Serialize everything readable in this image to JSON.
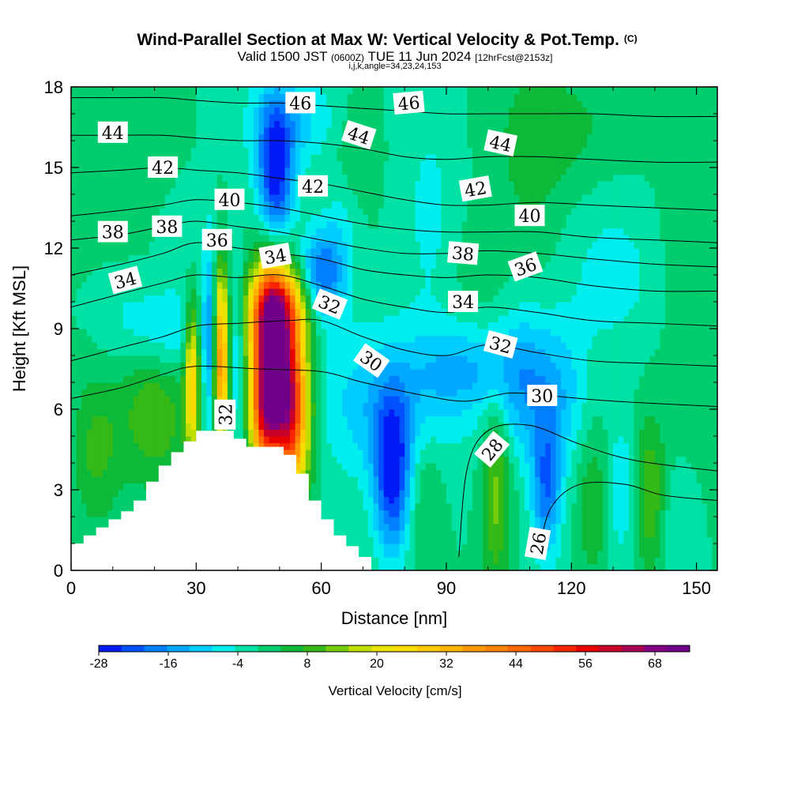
{
  "chart_data": {
    "type": "heatmap",
    "title": "Wind-Parallel Section at Max W: Vertical Velocity & Pot.Temp.",
    "title_mark": "(C)",
    "valid_prefix": "Valid 1500 JST",
    "valid_z": "(0600Z)",
    "valid_date": "TUE 11 Jun 2024",
    "valid_fcst": "[12hrFcst@2153z]",
    "indices": "i,j,k,angle=34,23,24,153",
    "xlabel": "Distance [nm]",
    "ylabel": "Height [Kft MSL]",
    "xlim": [
      0,
      155
    ],
    "ylim": [
      0,
      18
    ],
    "x_ticks": [
      "0",
      "30",
      "60",
      "90",
      "120",
      "150"
    ],
    "y_ticks": [
      "0",
      "3",
      "6",
      "9",
      "12",
      "15",
      "18"
    ],
    "colorbar": {
      "label": "Vertical Velocity [cm/s]",
      "min": -28,
      "max": 74,
      "step": 4,
      "tick_labels": [
        "-28",
        "-16",
        "-4",
        "8",
        "20",
        "32",
        "44",
        "56",
        "68"
      ]
    },
    "terrain_kft": [
      [
        0,
        1.0
      ],
      [
        3,
        1.0
      ],
      [
        3,
        1.3
      ],
      [
        6,
        1.3
      ],
      [
        6,
        1.6
      ],
      [
        9,
        1.6
      ],
      [
        9,
        1.9
      ],
      [
        12,
        1.9
      ],
      [
        12,
        2.2
      ],
      [
        15,
        2.2
      ],
      [
        15,
        2.6
      ],
      [
        18,
        2.6
      ],
      [
        18,
        3.3
      ],
      [
        21,
        3.3
      ],
      [
        21,
        3.9
      ],
      [
        24,
        3.9
      ],
      [
        24,
        4.4
      ],
      [
        27,
        4.4
      ],
      [
        27,
        4.8
      ],
      [
        30,
        4.8
      ],
      [
        30,
        5.2
      ],
      [
        39,
        5.2
      ],
      [
        39,
        4.9
      ],
      [
        42,
        4.9
      ],
      [
        42,
        4.6
      ],
      [
        51,
        4.6
      ],
      [
        51,
        4.3
      ],
      [
        54,
        4.3
      ],
      [
        54,
        3.6
      ],
      [
        57,
        3.6
      ],
      [
        57,
        2.6
      ],
      [
        60,
        2.6
      ],
      [
        60,
        1.9
      ],
      [
        63,
        1.9
      ],
      [
        63,
        1.3
      ],
      [
        66,
        1.3
      ],
      [
        66,
        0.9
      ],
      [
        69,
        0.9
      ],
      [
        69,
        0.5
      ],
      [
        72,
        0.5
      ],
      [
        72,
        0
      ]
    ],
    "velocity_field": {
      "background": 0,
      "features": [
        {
          "x": 48,
          "y": 7.8,
          "sx": 3.2,
          "sy": 2.4,
          "w": 76
        },
        {
          "x": 53,
          "y": 6.0,
          "sx": 3.0,
          "sy": 2.2,
          "w": 50
        },
        {
          "x": 50,
          "y": 9.8,
          "sx": 5.0,
          "sy": 1.0,
          "w": 28
        },
        {
          "x": 46,
          "y": 5.5,
          "sx": 2.0,
          "sy": 1.3,
          "w": 20
        },
        {
          "x": 36,
          "y": 7.8,
          "sx": 1.1,
          "sy": 2.4,
          "w": 40
        },
        {
          "x": 29,
          "y": 7.2,
          "sx": 1.2,
          "sy": 2.0,
          "w": 28
        },
        {
          "x": 33,
          "y": 8.5,
          "sx": 1.0,
          "sy": 2.5,
          "w": -14
        },
        {
          "x": 40,
          "y": 8.0,
          "sx": 1.0,
          "sy": 2.5,
          "w": -10
        },
        {
          "x": 20,
          "y": 6.0,
          "sx": 6.0,
          "sy": 2.0,
          "w": 12
        },
        {
          "x": 6,
          "y": 4.5,
          "sx": 4.0,
          "sy": 2.0,
          "w": 9
        },
        {
          "x": 23,
          "y": 8.8,
          "sx": 6.0,
          "sy": 1.2,
          "w": -10
        },
        {
          "x": 12,
          "y": 9.5,
          "sx": 5.0,
          "sy": 1.5,
          "w": -4
        },
        {
          "x": 49,
          "y": 14.6,
          "sx": 3.0,
          "sy": 1.9,
          "w": -28
        },
        {
          "x": 60,
          "y": 11.0,
          "sx": 3.5,
          "sy": 1.2,
          "w": -20
        },
        {
          "x": 53,
          "y": 16.8,
          "sx": 8.0,
          "sy": 1.2,
          "w": -10
        },
        {
          "x": 67,
          "y": 15.5,
          "sx": 4.0,
          "sy": 1.5,
          "w": 6
        },
        {
          "x": 77,
          "y": 3.5,
          "sx": 3.0,
          "sy": 2.0,
          "w": -26
        },
        {
          "x": 76,
          "y": 6.2,
          "sx": 12.0,
          "sy": 2.0,
          "w": -12
        },
        {
          "x": 95,
          "y": 7.5,
          "sx": 8.0,
          "sy": 1.2,
          "w": -10
        },
        {
          "x": 108,
          "y": 7.0,
          "sx": 5.0,
          "sy": 2.0,
          "w": -12
        },
        {
          "x": 114,
          "y": 3.0,
          "sx": 2.5,
          "sy": 1.8,
          "w": -18
        },
        {
          "x": 102,
          "y": 3.0,
          "sx": 2.5,
          "sy": 2.5,
          "w": 14
        },
        {
          "x": 85,
          "y": 3.0,
          "sx": 3.0,
          "sy": 2.0,
          "w": 6
        },
        {
          "x": 125,
          "y": 2.5,
          "sx": 2.5,
          "sy": 2.0,
          "w": 8
        },
        {
          "x": 139,
          "y": 2.8,
          "sx": 2.5,
          "sy": 2.0,
          "w": 12
        },
        {
          "x": 132,
          "y": 3.0,
          "sx": 2.0,
          "sy": 1.8,
          "w": -8
        },
        {
          "x": 145,
          "y": 1.5,
          "sx": 3.0,
          "sy": 1.5,
          "w": -4
        },
        {
          "x": 117,
          "y": 6.5,
          "sx": 5.0,
          "sy": 2.0,
          "w": -10
        },
        {
          "x": 130,
          "y": 11.0,
          "sx": 8.0,
          "sy": 2.0,
          "w": -6
        },
        {
          "x": 110,
          "y": 14.5,
          "sx": 6.0,
          "sy": 3.0,
          "w": 4
        },
        {
          "x": 150,
          "y": 12.0,
          "sx": 6.0,
          "sy": 4.0,
          "w": 4
        },
        {
          "x": 118,
          "y": 16.5,
          "sx": 10.0,
          "sy": 1.5,
          "w": 5
        },
        {
          "x": 86,
          "y": 13.5,
          "sx": 5.0,
          "sy": 3.0,
          "w": -5
        },
        {
          "x": 12,
          "y": 15.0,
          "sx": 8.0,
          "sy": 2.5,
          "w": 4
        },
        {
          "x": 97,
          "y": 11.0,
          "sx": 4.0,
          "sy": 1.5,
          "w": 3
        },
        {
          "x": 65,
          "y": 13.0,
          "sx": 3.0,
          "sy": 2.0,
          "w": -6
        },
        {
          "x": 28,
          "y": 12.5,
          "sx": 6.0,
          "sy": 1.5,
          "w": -3
        }
      ]
    },
    "theta_contours": [
      {
        "value": 26,
        "points": [
          [
            112,
            0.5
          ],
          [
            115,
            2.3
          ],
          [
            122,
            3.2
          ],
          [
            133,
            3.2
          ],
          [
            142,
            2.8
          ],
          [
            155,
            2.6
          ]
        ]
      },
      {
        "value": 28,
        "points": [
          [
            93,
            0.5
          ],
          [
            95,
            3.8
          ],
          [
            100,
            5.2
          ],
          [
            110,
            5.4
          ],
          [
            122,
            4.7
          ],
          [
            135,
            4.1
          ],
          [
            155,
            3.7
          ]
        ]
      },
      {
        "value": 30,
        "points": [
          [
            0,
            6.4
          ],
          [
            12,
            6.8
          ],
          [
            22,
            7.3
          ],
          [
            30,
            7.6
          ],
          [
            45,
            7.5
          ],
          [
            60,
            7.4
          ],
          [
            70,
            7.0
          ],
          [
            85,
            6.5
          ],
          [
            95,
            6.3
          ],
          [
            105,
            6.6
          ],
          [
            115,
            6.5
          ],
          [
            130,
            6.3
          ],
          [
            155,
            6.1
          ]
        ]
      },
      {
        "value": 32,
        "points": [
          [
            0,
            7.8
          ],
          [
            12,
            8.3
          ],
          [
            22,
            8.7
          ],
          [
            30,
            9.1
          ],
          [
            40,
            9.2
          ],
          [
            52,
            9.3
          ],
          [
            60,
            9.3
          ],
          [
            70,
            8.7
          ],
          [
            80,
            8.2
          ],
          [
            90,
            8.0
          ],
          [
            100,
            8.4
          ],
          [
            112,
            8.1
          ],
          [
            125,
            7.8
          ],
          [
            140,
            7.7
          ],
          [
            155,
            7.6
          ]
        ]
      },
      {
        "value": 34,
        "points": [
          [
            0,
            9.8
          ],
          [
            12,
            10.3
          ],
          [
            22,
            10.7
          ],
          [
            30,
            11.0
          ],
          [
            40,
            10.9
          ],
          [
            50,
            11.0
          ],
          [
            60,
            10.6
          ],
          [
            70,
            10.1
          ],
          [
            80,
            9.8
          ],
          [
            90,
            9.6
          ],
          [
            100,
            9.8
          ],
          [
            112,
            9.6
          ],
          [
            125,
            9.3
          ],
          [
            140,
            9.2
          ],
          [
            155,
            9.1
          ]
        ]
      },
      {
        "value": 36,
        "points": [
          [
            0,
            11.0
          ],
          [
            12,
            11.4
          ],
          [
            22,
            11.8
          ],
          [
            30,
            12.2
          ],
          [
            40,
            12.0
          ],
          [
            50,
            11.8
          ],
          [
            60,
            11.6
          ],
          [
            70,
            11.2
          ],
          [
            80,
            11.0
          ],
          [
            90,
            10.9
          ],
          [
            100,
            11.0
          ],
          [
            112,
            10.9
          ],
          [
            125,
            10.6
          ],
          [
            140,
            10.4
          ],
          [
            155,
            10.4
          ]
        ]
      },
      {
        "value": 38,
        "points": [
          [
            0,
            12.3
          ],
          [
            12,
            12.5
          ],
          [
            22,
            12.8
          ],
          [
            30,
            13.0
          ],
          [
            40,
            12.8
          ],
          [
            50,
            12.6
          ],
          [
            60,
            12.3
          ],
          [
            70,
            12.0
          ],
          [
            80,
            11.8
          ],
          [
            90,
            11.8
          ],
          [
            100,
            11.9
          ],
          [
            112,
            11.8
          ],
          [
            125,
            11.6
          ],
          [
            140,
            11.4
          ],
          [
            155,
            11.3
          ]
        ]
      },
      {
        "value": 40,
        "points": [
          [
            0,
            13.2
          ],
          [
            12,
            13.4
          ],
          [
            22,
            13.6
          ],
          [
            30,
            13.8
          ],
          [
            40,
            13.7
          ],
          [
            50,
            13.5
          ],
          [
            60,
            13.2
          ],
          [
            70,
            12.9
          ],
          [
            80,
            12.7
          ],
          [
            90,
            12.6
          ],
          [
            100,
            12.6
          ],
          [
            112,
            12.6
          ],
          [
            125,
            12.4
          ],
          [
            140,
            12.3
          ],
          [
            155,
            12.2
          ]
        ]
      },
      {
        "value": 42,
        "points": [
          [
            0,
            14.8
          ],
          [
            12,
            14.9
          ],
          [
            22,
            15.0
          ],
          [
            30,
            14.9
          ],
          [
            40,
            14.8
          ],
          [
            50,
            14.6
          ],
          [
            60,
            14.4
          ],
          [
            70,
            14.1
          ],
          [
            80,
            13.8
          ],
          [
            90,
            13.6
          ],
          [
            100,
            13.6
          ],
          [
            112,
            13.7
          ],
          [
            125,
            13.6
          ],
          [
            140,
            13.5
          ],
          [
            155,
            13.4
          ]
        ]
      },
      {
        "value": 44,
        "points": [
          [
            0,
            16.2
          ],
          [
            12,
            16.2
          ],
          [
            22,
            16.2
          ],
          [
            30,
            16.1
          ],
          [
            40,
            16.0
          ],
          [
            50,
            16.0
          ],
          [
            60,
            15.9
          ],
          [
            70,
            15.7
          ],
          [
            80,
            15.4
          ],
          [
            90,
            15.3
          ],
          [
            100,
            15.4
          ],
          [
            112,
            15.4
          ],
          [
            125,
            15.3
          ],
          [
            140,
            15.2
          ],
          [
            155,
            15.2
          ]
        ]
      },
      {
        "value": 46,
        "points": [
          [
            0,
            17.6
          ],
          [
            12,
            17.6
          ],
          [
            22,
            17.6
          ],
          [
            30,
            17.5
          ],
          [
            40,
            17.4
          ],
          [
            50,
            17.4
          ],
          [
            60,
            17.3
          ],
          [
            70,
            17.2
          ],
          [
            80,
            17.1
          ],
          [
            90,
            17.0
          ],
          [
            100,
            17.0
          ],
          [
            112,
            17.0
          ],
          [
            125,
            17.0
          ],
          [
            140,
            16.9
          ],
          [
            155,
            16.9
          ]
        ]
      }
    ],
    "contour_labels": [
      {
        "text": "44",
        "x": 10,
        "y": 16.3,
        "rot": 0
      },
      {
        "text": "42",
        "x": 22,
        "y": 15.0,
        "rot": 0
      },
      {
        "text": "40",
        "x": 38,
        "y": 13.8,
        "rot": 0
      },
      {
        "text": "38",
        "x": 10,
        "y": 12.6,
        "rot": 0
      },
      {
        "text": "38",
        "x": 23,
        "y": 12.8,
        "rot": 0
      },
      {
        "text": "36",
        "x": 35,
        "y": 12.3,
        "rot": 0
      },
      {
        "text": "34",
        "x": 13,
        "y": 10.8,
        "rot": -15
      },
      {
        "text": "34",
        "x": 49,
        "y": 11.7,
        "rot": -10
      },
      {
        "text": "46",
        "x": 55,
        "y": 17.4,
        "rot": 0
      },
      {
        "text": "46",
        "x": 81,
        "y": 17.4,
        "rot": -5
      },
      {
        "text": "44",
        "x": 69,
        "y": 16.2,
        "rot": 18
      },
      {
        "text": "42",
        "x": 58,
        "y": 14.3,
        "rot": 0
      },
      {
        "text": "32",
        "x": 62,
        "y": 9.9,
        "rot": 22
      },
      {
        "text": "30",
        "x": 72,
        "y": 7.8,
        "rot": 35
      },
      {
        "text": "32",
        "x": 37,
        "y": 5.8,
        "rot": -90
      },
      {
        "text": "44",
        "x": 103,
        "y": 15.9,
        "rot": 12
      },
      {
        "text": "42",
        "x": 97,
        "y": 14.2,
        "rot": -10
      },
      {
        "text": "40",
        "x": 110,
        "y": 13.2,
        "rot": 0
      },
      {
        "text": "38",
        "x": 94,
        "y": 11.8,
        "rot": 5
      },
      {
        "text": "36",
        "x": 109,
        "y": 11.3,
        "rot": -20
      },
      {
        "text": "34",
        "x": 94,
        "y": 10.0,
        "rot": 0
      },
      {
        "text": "32",
        "x": 103,
        "y": 8.4,
        "rot": 15
      },
      {
        "text": "30",
        "x": 113,
        "y": 6.5,
        "rot": 0
      },
      {
        "text": "28",
        "x": 101,
        "y": 4.5,
        "rot": -50
      },
      {
        "text": "26",
        "x": 112,
        "y": 1.0,
        "rot": -80
      }
    ]
  }
}
